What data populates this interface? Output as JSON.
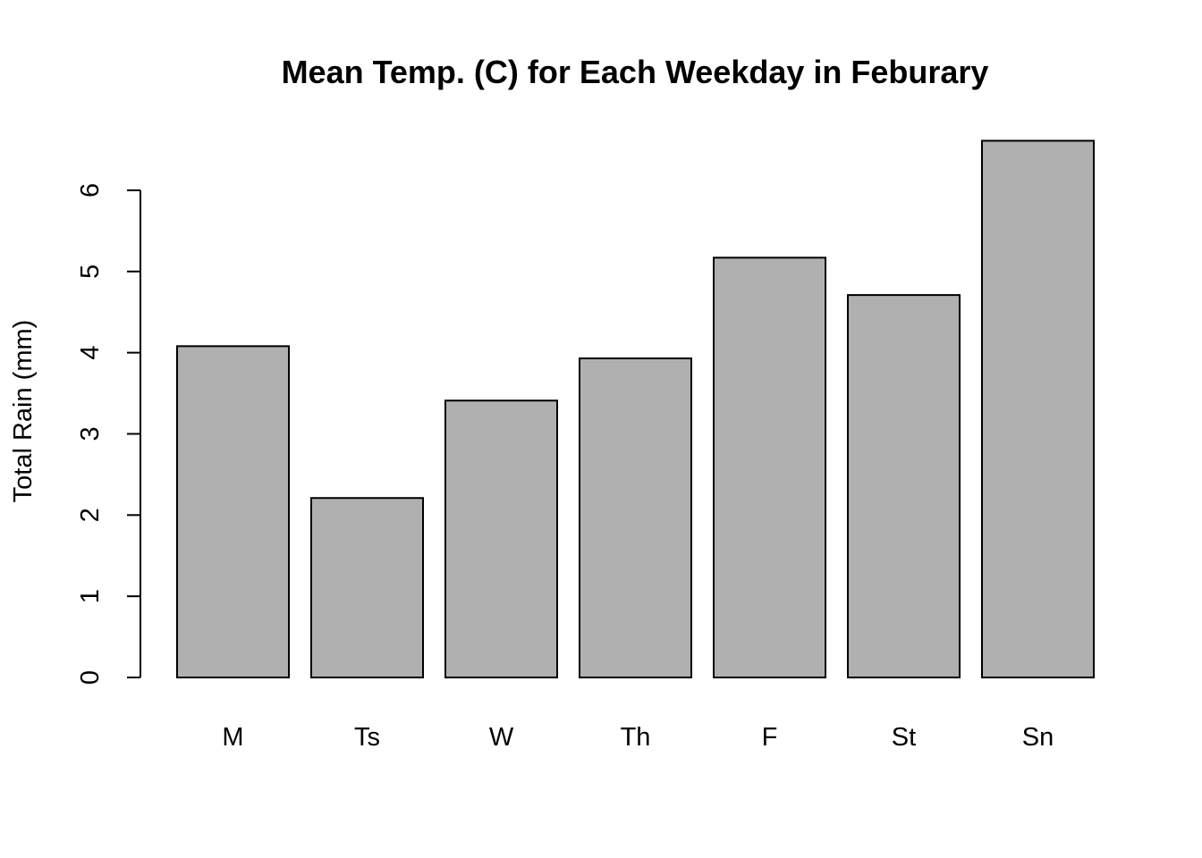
{
  "chart_data": {
    "type": "bar",
    "title": "Mean Temp. (C) for Each Weekday in Feburary",
    "xlabel": "",
    "ylabel": "Total Rain (mm)",
    "categories": [
      "M",
      "Ts",
      "W",
      "Th",
      "F",
      "St",
      "Sn"
    ],
    "values": [
      4.08,
      2.21,
      3.41,
      3.93,
      5.17,
      4.71,
      6.61
    ],
    "ylim": [
      0,
      6.61
    ],
    "yticks": [
      "0",
      "1",
      "2",
      "3",
      "4",
      "5",
      "6"
    ],
    "grid": false,
    "legend": "none",
    "bar_color": "#b0b0b0",
    "edge_color": "#000000"
  }
}
